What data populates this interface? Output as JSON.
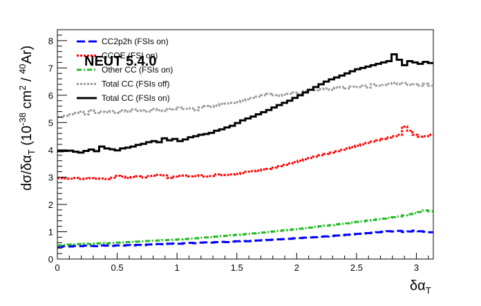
{
  "chart_data": {
    "type": "line",
    "watermark": "NEUT 5.4.0",
    "xlim": [
      0,
      3.1416
    ],
    "ylim": [
      0,
      8.4
    ],
    "xticks": [
      "0",
      "0.5",
      "1",
      "1.5",
      "2",
      "2.5",
      "3"
    ],
    "yticks": [
      "0",
      "1",
      "2",
      "3",
      "4",
      "5",
      "6",
      "7",
      "8"
    ],
    "xlabel_parts": [
      "δα",
      "T"
    ],
    "ylabel_parts": [
      "dσ/δα",
      "T",
      " (10",
      "-38",
      " cm",
      "2",
      " / ",
      "40",
      "Ar)"
    ],
    "legend_position": "top-left",
    "nbins": 72,
    "series": [
      {
        "name": "CC2p2h (FSIs on)",
        "color": "#0000ff",
        "style": "dashed",
        "values": [
          0.45,
          0.47,
          0.46,
          0.48,
          0.47,
          0.49,
          0.48,
          0.47,
          0.5,
          0.49,
          0.48,
          0.5,
          0.49,
          0.51,
          0.5,
          0.52,
          0.51,
          0.53,
          0.54,
          0.55,
          0.54,
          0.56,
          0.57,
          0.56,
          0.58,
          0.59,
          0.58,
          0.6,
          0.61,
          0.6,
          0.62,
          0.63,
          0.62,
          0.64,
          0.65,
          0.66,
          0.65,
          0.67,
          0.68,
          0.69,
          0.7,
          0.71,
          0.72,
          0.73,
          0.74,
          0.76,
          0.77,
          0.78,
          0.79,
          0.8,
          0.82,
          0.83,
          0.84,
          0.86,
          0.87,
          0.89,
          0.9,
          0.92,
          0.93,
          0.95,
          0.96,
          0.98,
          1.0,
          1.02,
          1.01,
          1.03,
          0.99,
          1.01,
          1.04,
          1.02,
          1.0,
          0.98
        ]
      },
      {
        "name": "CCQE (FSI on)",
        "color": "#ff0000",
        "style": "dotted",
        "values": [
          2.96,
          2.95,
          2.94,
          2.97,
          2.93,
          2.95,
          2.96,
          2.94,
          2.95,
          2.93,
          2.98,
          3.05,
          3.02,
          2.97,
          3.0,
          3.03,
          2.99,
          3.04,
          3.05,
          3.08,
          3.06,
          2.97,
          3.02,
          3.05,
          3.06,
          3.03,
          3.04,
          3.07,
          3.02,
          3.04,
          3.1,
          3.07,
          3.08,
          3.1,
          3.12,
          3.15,
          3.2,
          3.22,
          3.24,
          3.28,
          3.3,
          3.35,
          3.4,
          3.45,
          3.5,
          3.55,
          3.6,
          3.65,
          3.7,
          3.75,
          3.8,
          3.85,
          3.9,
          3.95,
          4.0,
          4.05,
          4.1,
          4.15,
          4.2,
          4.25,
          4.3,
          4.35,
          4.4,
          4.45,
          4.5,
          4.55,
          4.85,
          4.7,
          4.55,
          4.48,
          4.5,
          4.55
        ]
      },
      {
        "name": "Other CC (FSIs on)",
        "color": "#22bb22",
        "style": "dashdot",
        "values": [
          0.5,
          0.52,
          0.53,
          0.54,
          0.55,
          0.56,
          0.55,
          0.57,
          0.58,
          0.57,
          0.59,
          0.6,
          0.61,
          0.62,
          0.63,
          0.64,
          0.65,
          0.66,
          0.67,
          0.68,
          0.69,
          0.7,
          0.71,
          0.72,
          0.73,
          0.75,
          0.76,
          0.78,
          0.79,
          0.8,
          0.82,
          0.84,
          0.85,
          0.87,
          0.89,
          0.9,
          0.92,
          0.94,
          0.95,
          0.97,
          0.99,
          1.01,
          1.03,
          1.05,
          1.07,
          1.09,
          1.11,
          1.13,
          1.15,
          1.18,
          1.2,
          1.22,
          1.24,
          1.27,
          1.29,
          1.31,
          1.34,
          1.36,
          1.38,
          1.41,
          1.43,
          1.46,
          1.48,
          1.51,
          1.53,
          1.56,
          1.6,
          1.64,
          1.68,
          1.72,
          1.78,
          1.75
        ]
      },
      {
        "name": "Total CC (FSIs off)",
        "color": "#999999",
        "style": "dotted",
        "values": [
          5.2,
          5.25,
          5.3,
          5.35,
          5.4,
          5.3,
          5.45,
          5.35,
          5.4,
          5.38,
          5.42,
          5.35,
          5.45,
          5.4,
          5.48,
          5.42,
          5.45,
          5.4,
          5.5,
          5.45,
          5.42,
          5.5,
          5.48,
          5.55,
          5.5,
          5.52,
          5.45,
          5.55,
          5.6,
          5.58,
          5.62,
          5.68,
          5.7,
          5.72,
          5.75,
          5.8,
          5.85,
          5.9,
          5.95,
          6.0,
          6.05,
          6.0,
          5.98,
          6.02,
          6.05,
          6.1,
          6.05,
          6.15,
          6.2,
          6.18,
          6.22,
          6.25,
          6.2,
          6.28,
          6.3,
          6.25,
          6.32,
          6.3,
          6.35,
          6.28,
          6.4,
          6.35,
          6.38,
          6.42,
          6.45,
          6.4,
          6.45,
          6.38,
          6.4,
          6.35,
          6.42,
          6.35
        ]
      },
      {
        "name": "Total CC (FSIs on)",
        "color": "#000000",
        "style": "solid",
        "values": [
          3.95,
          3.96,
          3.97,
          3.93,
          3.9,
          3.96,
          4.01,
          3.95,
          4.12,
          4.05,
          4.02,
          3.98,
          4.05,
          4.08,
          4.12,
          4.18,
          4.22,
          4.28,
          4.32,
          4.28,
          4.42,
          4.35,
          4.4,
          4.32,
          4.38,
          4.46,
          4.5,
          4.55,
          4.58,
          4.62,
          4.7,
          4.75,
          4.82,
          4.88,
          4.98,
          5.08,
          5.15,
          5.22,
          5.3,
          5.38,
          5.46,
          5.55,
          5.64,
          5.72,
          5.8,
          5.9,
          6.0,
          6.1,
          6.2,
          6.3,
          6.4,
          6.5,
          6.58,
          6.65,
          6.72,
          6.8,
          6.88,
          6.95,
          7.0,
          7.05,
          7.1,
          7.15,
          7.2,
          7.25,
          7.5,
          7.3,
          7.1,
          7.25,
          7.2,
          7.15,
          7.22,
          7.18
        ]
      }
    ]
  }
}
